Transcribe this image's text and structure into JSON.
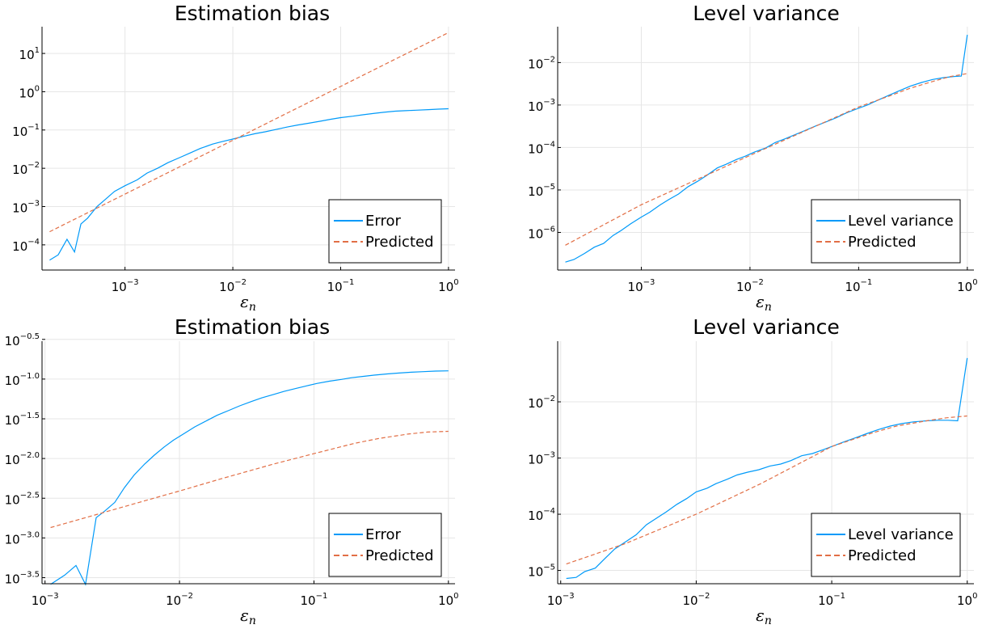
{
  "colors": {
    "error": "#009af9",
    "predicted": "#e26f46",
    "grid": "#e6e6e6",
    "axis": "#000000"
  },
  "chart_data": [
    {
      "type": "line",
      "title": "Estimation bias",
      "xlabel": "εn",
      "xlabel_base": "ε",
      "xlabel_sub": "n",
      "xscale": "log10",
      "yscale": "log10",
      "xlim": [
        0.00017,
        1.15
      ],
      "ylim": [
        2.2e-05,
        50
      ],
      "xticks": [
        0.001,
        0.01,
        0.1,
        1
      ],
      "xtick_labels": [
        {
          "base": "10",
          "exp": "−3"
        },
        {
          "base": "10",
          "exp": "−2"
        },
        {
          "base": "10",
          "exp": "−1"
        },
        {
          "base": "10",
          "exp": "0"
        }
      ],
      "yticks": [
        0.0001,
        0.001,
        0.01,
        0.1,
        1,
        10
      ],
      "ytick_labels": [
        {
          "base": "10",
          "exp": "−4"
        },
        {
          "base": "10",
          "exp": "−3"
        },
        {
          "base": "10",
          "exp": "−2"
        },
        {
          "base": "10",
          "exp": "−1"
        },
        {
          "base": "10",
          "exp": "0"
        },
        {
          "base": "10",
          "exp": "1"
        }
      ],
      "grid": true,
      "legend_position": "bottom-right",
      "series": [
        {
          "name": "Error",
          "style": "solid",
          "x": [
            0.0002,
            0.00024,
            0.00029,
            0.00034,
            0.00039,
            0.00045,
            0.00055,
            0.00065,
            0.0008,
            0.001,
            0.0013,
            0.0016,
            0.002,
            0.0025,
            0.0032,
            0.004,
            0.005,
            0.0065,
            0.008,
            0.01,
            0.0125,
            0.016,
            0.02,
            0.025,
            0.032,
            0.04,
            0.05,
            0.065,
            0.08,
            0.1,
            0.13,
            0.16,
            0.2,
            0.25,
            0.32,
            0.4,
            0.5,
            0.65,
            0.8,
            1.0
          ],
          "y": [
            4e-05,
            5.5e-05,
            0.00014,
            6.5e-05,
            0.00035,
            0.0005,
            0.001,
            0.0015,
            0.0025,
            0.0035,
            0.005,
            0.0075,
            0.01,
            0.014,
            0.019,
            0.025,
            0.033,
            0.043,
            0.05,
            0.058,
            0.068,
            0.08,
            0.09,
            0.103,
            0.12,
            0.135,
            0.15,
            0.17,
            0.19,
            0.21,
            0.23,
            0.25,
            0.27,
            0.29,
            0.31,
            0.32,
            0.33,
            0.34,
            0.35,
            0.36
          ]
        },
        {
          "name": "Predicted",
          "style": "dashed",
          "x": [
            0.0002,
            1.0
          ],
          "y": [
            0.00022,
            35
          ]
        }
      ]
    },
    {
      "type": "line",
      "title": "Level variance",
      "xlabel": "εn",
      "xlabel_base": "ε",
      "xlabel_sub": "n",
      "xscale": "log10",
      "yscale": "log10",
      "xlim": [
        0.00017,
        1.15
      ],
      "ylim": [
        1.3e-07,
        0.07
      ],
      "xticks": [
        0.001,
        0.01,
        0.1,
        1
      ],
      "xtick_labels": [
        {
          "base": "10",
          "exp": "−3"
        },
        {
          "base": "10",
          "exp": "−2"
        },
        {
          "base": "10",
          "exp": "−1"
        },
        {
          "base": "10",
          "exp": "0"
        }
      ],
      "yticks": [
        1e-06,
        1e-05,
        0.0001,
        0.001,
        0.01
      ],
      "ytick_labels": [
        {
          "base": "10",
          "exp": "−6"
        },
        {
          "base": "10",
          "exp": "−5"
        },
        {
          "base": "10",
          "exp": "−4"
        },
        {
          "base": "10",
          "exp": "−3"
        },
        {
          "base": "10",
          "exp": "−2"
        }
      ],
      "grid": true,
      "legend_position": "bottom-right",
      "series": [
        {
          "name": "Level variance",
          "style": "solid",
          "x": [
            0.0002,
            0.00024,
            0.0003,
            0.00037,
            0.00045,
            0.00055,
            0.00065,
            0.0008,
            0.001,
            0.0012,
            0.0015,
            0.0018,
            0.0022,
            0.0027,
            0.0033,
            0.004,
            0.005,
            0.006,
            0.0075,
            0.009,
            0.011,
            0.014,
            0.017,
            0.021,
            0.026,
            0.032,
            0.04,
            0.05,
            0.062,
            0.077,
            0.095,
            0.12,
            0.15,
            0.19,
            0.24,
            0.3,
            0.38,
            0.48,
            0.6,
            0.75,
            0.88,
            1.0
          ],
          "y": [
            2e-07,
            2.3e-07,
            3.2e-07,
            4.5e-07,
            5.5e-07,
            8.5e-07,
            1.1e-06,
            1.6e-06,
            2.3e-06,
            3e-06,
            4.5e-06,
            6e-06,
            8e-06,
            1.2e-05,
            1.6e-05,
            2.2e-05,
            3.3e-05,
            4e-05,
            5.2e-05,
            6.2e-05,
            7.8e-05,
            9.8e-05,
            0.00013,
            0.00016,
            0.0002,
            0.00025,
            0.00032,
            0.0004,
            0.0005,
            0.00065,
            0.0008,
            0.001,
            0.0013,
            0.0017,
            0.0022,
            0.0028,
            0.0034,
            0.004,
            0.0044,
            0.0047,
            0.0048,
            0.045
          ]
        },
        {
          "name": "Predicted",
          "style": "dashed",
          "x": [
            0.0002,
            0.001,
            0.01,
            0.1,
            0.2,
            0.3,
            0.5,
            0.7,
            1.0
          ],
          "y": [
            5e-07,
            4.5e-06,
            6.5e-05,
            0.0009,
            0.0017,
            0.0025,
            0.0037,
            0.0047,
            0.0055
          ]
        }
      ]
    },
    {
      "type": "line",
      "title": "Estimation bias",
      "xlabel": "εn",
      "xlabel_base": "ε",
      "xlabel_sub": "n",
      "xscale": "log10",
      "yscale": "log10",
      "xlim": [
        0.00095,
        1.12
      ],
      "ylim": [
        0.000265,
        0.3
      ],
      "xticks": [
        0.001,
        0.01,
        0.1,
        1
      ],
      "xtick_labels": [
        {
          "base": "10",
          "exp": "−3"
        },
        {
          "base": "10",
          "exp": "−2"
        },
        {
          "base": "10",
          "exp": "−1"
        },
        {
          "base": "10",
          "exp": "0"
        }
      ],
      "yticks": [
        0.000316,
        0.001,
        0.00316,
        0.01,
        0.0316,
        0.1,
        0.316
      ],
      "ytick_labels": [
        {
          "base": "10",
          "exp": "−3.5"
        },
        {
          "base": "10",
          "exp": "−3.0"
        },
        {
          "base": "10",
          "exp": "−2.5"
        },
        {
          "base": "10",
          "exp": "−2.0"
        },
        {
          "base": "10",
          "exp": "−1.5"
        },
        {
          "base": "10",
          "exp": "−1.0"
        },
        {
          "base": "10",
          "exp": "−0.5"
        }
      ],
      "grid": true,
      "legend_position": "bottom-right",
      "series": [
        {
          "name": "Error",
          "style": "solid",
          "x": [
            0.0011,
            0.0014,
            0.0017,
            0.002,
            0.0024,
            0.0028,
            0.0033,
            0.0039,
            0.0046,
            0.0055,
            0.0065,
            0.0077,
            0.009,
            0.011,
            0.013,
            0.016,
            0.019,
            0.023,
            0.028,
            0.034,
            0.041,
            0.05,
            0.06,
            0.073,
            0.088,
            0.105,
            0.13,
            0.16,
            0.19,
            0.23,
            0.28,
            0.35,
            0.43,
            0.53,
            0.65,
            0.8,
            1.0
          ],
          "y": [
            0.00026,
            0.00034,
            0.00045,
            0.00026,
            0.0018,
            0.0022,
            0.0028,
            0.0043,
            0.0062,
            0.0085,
            0.011,
            0.014,
            0.017,
            0.021,
            0.025,
            0.03,
            0.035,
            0.04,
            0.046,
            0.052,
            0.058,
            0.064,
            0.07,
            0.076,
            0.082,
            0.088,
            0.094,
            0.099,
            0.104,
            0.108,
            0.112,
            0.116,
            0.119,
            0.122,
            0.124,
            0.126,
            0.127
          ]
        },
        {
          "name": "Predicted",
          "style": "dashed",
          "x": [
            0.0011,
            0.002,
            0.005,
            0.01,
            0.02,
            0.05,
            0.1,
            0.2,
            0.3,
            0.5,
            0.7,
            1.0
          ],
          "y": [
            0.00135,
            0.0018,
            0.0028,
            0.0039,
            0.0055,
            0.0085,
            0.0115,
            0.0155,
            0.0178,
            0.0203,
            0.0215,
            0.022
          ]
        }
      ]
    },
    {
      "type": "line",
      "title": "Level variance",
      "xlabel": "εn",
      "xlabel_base": "ε",
      "xlabel_sub": "n",
      "xscale": "log10",
      "yscale": "log10",
      "xlim": [
        0.00095,
        1.12
      ],
      "ylim": [
        5.8e-06,
        0.12
      ],
      "xticks": [
        0.001,
        0.01,
        0.1,
        1
      ],
      "xtick_labels": [
        {
          "base": "10",
          "exp": "−3"
        },
        {
          "base": "10",
          "exp": "−2"
        },
        {
          "base": "10",
          "exp": "−1"
        },
        {
          "base": "10",
          "exp": "0"
        }
      ],
      "yticks": [
        1e-05,
        0.0001,
        0.001,
        0.01
      ],
      "ytick_labels": [
        {
          "base": "10",
          "exp": "−5"
        },
        {
          "base": "10",
          "exp": "−4"
        },
        {
          "base": "10",
          "exp": "−3"
        },
        {
          "base": "10",
          "exp": "−2"
        }
      ],
      "grid": true,
      "legend_position": "bottom-right",
      "series": [
        {
          "name": "Level variance",
          "style": "solid",
          "x": [
            0.0011,
            0.0013,
            0.0015,
            0.0018,
            0.0021,
            0.0025,
            0.003,
            0.0036,
            0.0043,
            0.0051,
            0.006,
            0.0072,
            0.0085,
            0.01,
            0.012,
            0.014,
            0.017,
            0.02,
            0.024,
            0.029,
            0.035,
            0.042,
            0.05,
            0.06,
            0.072,
            0.086,
            0.1,
            0.12,
            0.15,
            0.18,
            0.22,
            0.27,
            0.33,
            0.4,
            0.5,
            0.6,
            0.72,
            0.85,
            1.0
          ],
          "y": [
            7.2e-06,
            7.5e-06,
            9.5e-06,
            1.1e-05,
            1.6e-05,
            2.4e-05,
            3.2e-05,
            4.3e-05,
            6.5e-05,
            8.5e-05,
            0.00011,
            0.00015,
            0.00019,
            0.00025,
            0.00029,
            0.00035,
            0.00042,
            0.0005,
            0.00056,
            0.00062,
            0.00072,
            0.00078,
            0.0009,
            0.0011,
            0.0012,
            0.0014,
            0.0016,
            0.0019,
            0.0023,
            0.0027,
            0.0032,
            0.0037,
            0.0041,
            0.0044,
            0.0046,
            0.0047,
            0.0047,
            0.0046,
            0.06
          ]
        },
        {
          "name": "Predicted",
          "style": "dashed",
          "x": [
            0.0011,
            0.003,
            0.01,
            0.03,
            0.1,
            0.2,
            0.3,
            0.5,
            0.7,
            1.0
          ],
          "y": [
            1.3e-05,
            3e-05,
            0.0001,
            0.00035,
            0.0016,
            0.0028,
            0.0037,
            0.0046,
            0.0052,
            0.0056
          ]
        }
      ]
    }
  ]
}
